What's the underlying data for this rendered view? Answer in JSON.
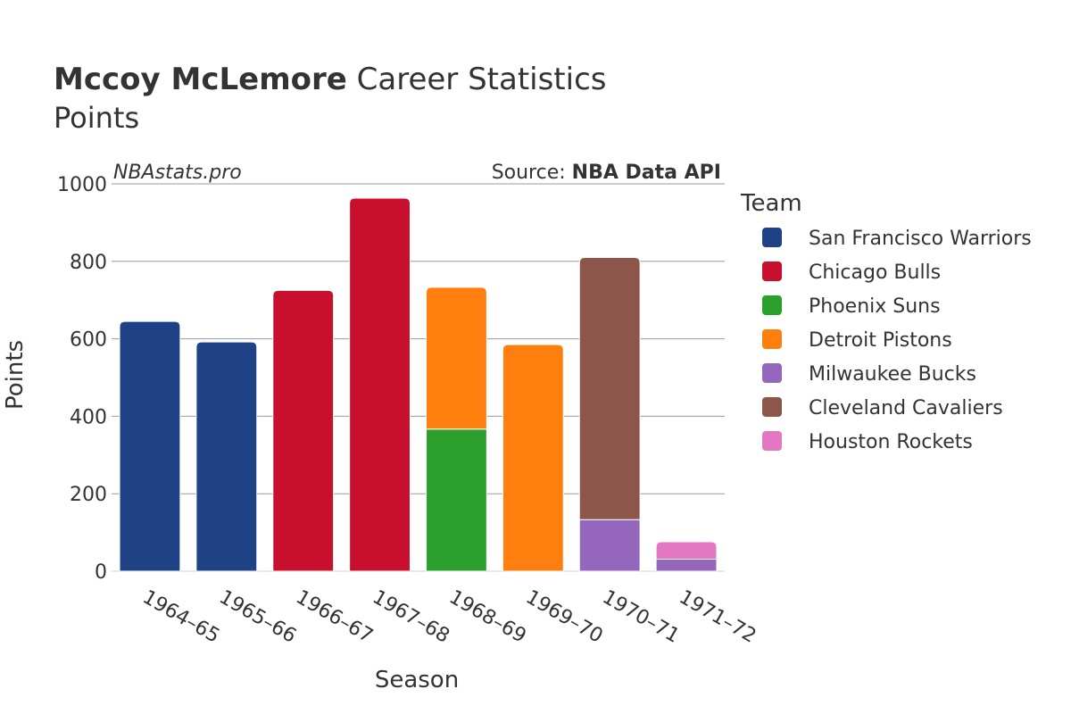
{
  "chart_title": {
    "player": "Mccoy McLemore",
    "rest": " Career Statistics",
    "subtitle": "Points"
  },
  "watermark": "NBAstats.pro",
  "source": {
    "prefix": "Source: ",
    "name": "NBA Data API"
  },
  "legend": {
    "title": "Team"
  },
  "chart_data": {
    "type": "bar",
    "stacked": true,
    "xlabel": "Season",
    "ylabel": "Points",
    "ylim": [
      0,
      1000
    ],
    "yticks": [
      0,
      200,
      400,
      600,
      800,
      1000
    ],
    "grid": true,
    "legend_position": "right",
    "categories": [
      "1964–65",
      "1965–66",
      "1966–67",
      "1967–68",
      "1968–69",
      "1969–70",
      "1970–71",
      "1971–72"
    ],
    "series": [
      {
        "name": "San Francisco Warriors",
        "color": "#1f4287",
        "values": [
          645,
          592,
          null,
          null,
          null,
          null,
          null,
          null
        ]
      },
      {
        "name": "Chicago Bulls",
        "color": "#c8102e",
        "values": [
          null,
          null,
          725,
          963,
          null,
          null,
          null,
          null
        ]
      },
      {
        "name": "Phoenix Suns",
        "color": "#2ca02c",
        "values": [
          null,
          null,
          null,
          null,
          367,
          null,
          null,
          null
        ]
      },
      {
        "name": "Detroit Pistons",
        "color": "#ff7f0e",
        "values": [
          null,
          null,
          null,
          null,
          366,
          585,
          null,
          null
        ]
      },
      {
        "name": "Milwaukee Bucks",
        "color": "#9467bd",
        "values": [
          null,
          null,
          null,
          null,
          null,
          null,
          133,
          31
        ]
      },
      {
        "name": "Cleveland Cavaliers",
        "color": "#8c564b",
        "values": [
          null,
          null,
          null,
          null,
          null,
          null,
          677,
          null
        ]
      },
      {
        "name": "Houston Rockets",
        "color": "#e377c2",
        "values": [
          null,
          null,
          null,
          null,
          null,
          null,
          null,
          45
        ]
      }
    ]
  }
}
